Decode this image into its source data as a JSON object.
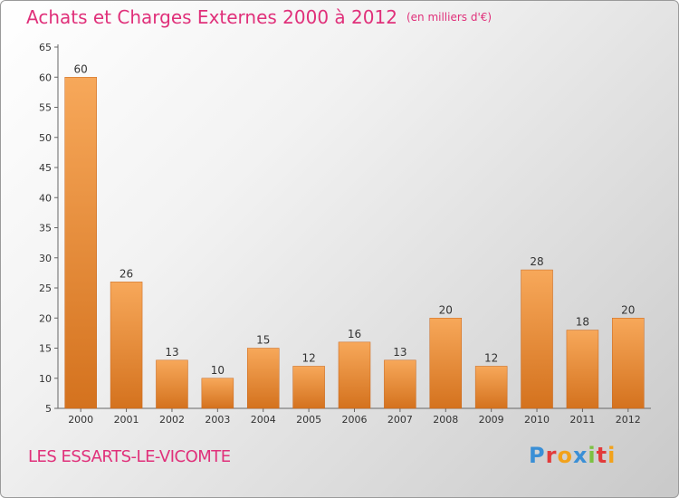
{
  "header": {
    "title": "Achats et Charges Externes 2000 à 2012",
    "unit": "(en milliers d'€)"
  },
  "footer": {
    "city": "LES ESSARTS-LE-VICOMTE",
    "logo": "Proxiti"
  },
  "colors": {
    "title": "#e0307a",
    "bar_light": "#f7a85a",
    "bar_dark": "#d4721e"
  },
  "chart_data": {
    "type": "bar",
    "categories": [
      "2000",
      "2001",
      "2002",
      "2003",
      "2004",
      "2005",
      "2006",
      "2007",
      "2008",
      "2009",
      "2010",
      "2011",
      "2012"
    ],
    "values": [
      60,
      26,
      13,
      10,
      15,
      12,
      16,
      13,
      20,
      12,
      28,
      18,
      20
    ],
    "ylim": [
      5,
      65
    ],
    "yticks": [
      5,
      10,
      15,
      20,
      25,
      30,
      35,
      40,
      45,
      50,
      55,
      60,
      65
    ],
    "grid": false,
    "legend": "none"
  }
}
